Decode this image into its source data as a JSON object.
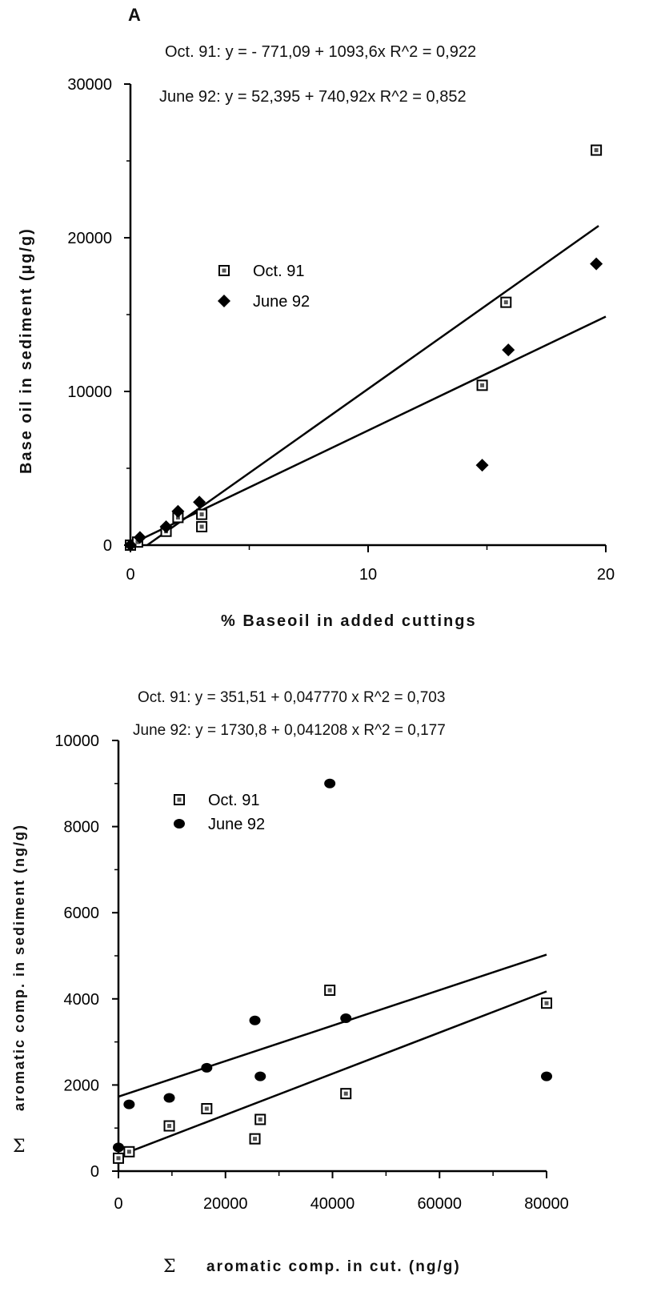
{
  "figure_letter": "A",
  "chart_data": [
    {
      "type": "scatter",
      "equations": [
        "Oct. 91: y =  - 771,09 + 1093,6x    R^2 = 0,922",
        "June 92: y = 52,395 + 740,92x    R^2 = 0,852"
      ],
      "xlabel": "% Baseoil in added cuttings",
      "ylabel": "Base oil in sediment (µg/g)",
      "xlim": [
        0,
        20
      ],
      "ylim": [
        0,
        30000
      ],
      "xticks": [
        0,
        10,
        20
      ],
      "yticks": [
        0,
        10000,
        20000,
        30000
      ],
      "legend_position": "center-left",
      "grid": false,
      "series": [
        {
          "name": "Oct. 91",
          "marker": "square",
          "points": [
            [
              0,
              0
            ],
            [
              0.3,
              200
            ],
            [
              1.5,
              900
            ],
            [
              2,
              1800
            ],
            [
              3,
              1200
            ],
            [
              3,
              2000
            ],
            [
              14.8,
              10400
            ],
            [
              15.8,
              15800
            ],
            [
              19.6,
              25700
            ]
          ],
          "fit": {
            "intercept": -771.09,
            "slope": 1093.6,
            "x": [
              0.7,
              19.7
            ]
          }
        },
        {
          "name": "June 92",
          "marker": "diamond",
          "points": [
            [
              0,
              0
            ],
            [
              0.4,
              500
            ],
            [
              1.5,
              1200
            ],
            [
              2,
              2200
            ],
            [
              2.9,
              2800
            ],
            [
              14.8,
              5200
            ],
            [
              15.9,
              12700
            ],
            [
              19.6,
              18300
            ]
          ],
          "fit": {
            "intercept": 52.395,
            "slope": 740.92,
            "x": [
              0,
              20
            ]
          }
        }
      ]
    },
    {
      "type": "scatter",
      "equations": [
        "Oct. 91: y = 351,51 + 0,047770 x    R^2 = 0,703",
        "June 92: y = 1730,8 + 0,041208 x    R^2 = 0,177"
      ],
      "xlabel": "aromatic comp. in cut. (ng/g)",
      "ylabel": "aromatic comp. in sediment (ng/g)",
      "sigma": "Σ",
      "xlim": [
        0,
        80000
      ],
      "ylim": [
        0,
        10000
      ],
      "xticks": [
        0,
        20000,
        40000,
        60000,
        80000
      ],
      "yticks": [
        0,
        2000,
        4000,
        6000,
        8000,
        10000
      ],
      "legend_position": "top-left",
      "grid": false,
      "series": [
        {
          "name": "Oct. 91",
          "marker": "square",
          "points": [
            [
              0,
              300
            ],
            [
              2000,
              450
            ],
            [
              9500,
              1050
            ],
            [
              16500,
              1450
            ],
            [
              25500,
              750
            ],
            [
              26500,
              1200
            ],
            [
              39500,
              4200
            ],
            [
              42500,
              1800
            ],
            [
              80000,
              3900
            ]
          ],
          "fit": {
            "intercept": 351.51,
            "slope": 0.04777,
            "x": [
              0,
              80000
            ]
          }
        },
        {
          "name": "June 92",
          "marker": "circle",
          "points": [
            [
              0,
              550
            ],
            [
              2000,
              1550
            ],
            [
              9500,
              1700
            ],
            [
              16500,
              2400
            ],
            [
              25500,
              3500
            ],
            [
              26500,
              2200
            ],
            [
              39500,
              9000
            ],
            [
              42500,
              3550
            ],
            [
              80000,
              2200
            ]
          ],
          "fit": {
            "intercept": 1730.8,
            "slope": 0.041208,
            "x": [
              0,
              80000
            ]
          }
        }
      ]
    }
  ]
}
